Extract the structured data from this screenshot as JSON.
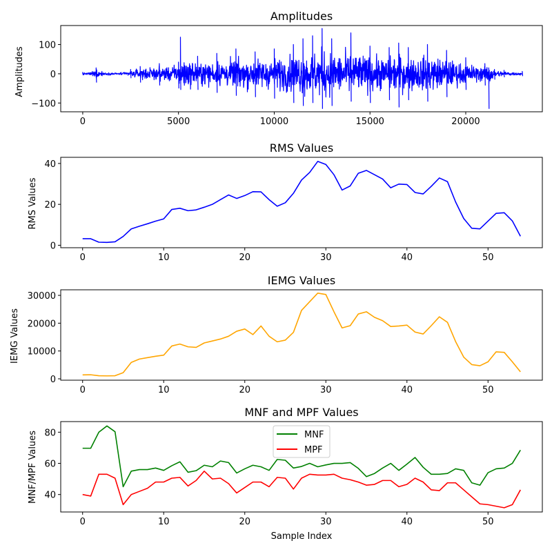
{
  "figure": {
    "shared_xlabel": "Sample Index"
  },
  "chart_data": [
    {
      "type": "line",
      "title": "Amplitudes",
      "xlabel": "",
      "ylabel": "Amplitudes",
      "xlim": [
        -1150,
        24000
      ],
      "ylim": [
        -130,
        165
      ],
      "xticks": [
        0,
        5000,
        10000,
        15000,
        20000
      ],
      "yticks": [
        -100,
        0,
        100
      ],
      "grid": false,
      "series": [
        {
          "name": "Amplitudes",
          "color": "#0000ff",
          "sample_count": 22950,
          "envelope_x": [
            0,
            500,
            700,
            1000,
            2000,
            2500,
            3000,
            4000,
            5000,
            5100,
            6000,
            7000,
            8000,
            9000,
            10000,
            11000,
            11500,
            12000,
            12500,
            13000,
            14000,
            15000,
            16000,
            16500,
            17000,
            18000,
            19000,
            20000,
            21000,
            21200,
            21500,
            22000,
            22950
          ],
          "envelope_upper": [
            5,
            8,
            20,
            8,
            5,
            15,
            25,
            35,
            40,
            125,
            60,
            70,
            85,
            75,
            85,
            100,
            120,
            130,
            155,
            120,
            140,
            95,
            90,
            105,
            90,
            100,
            80,
            55,
            35,
            20,
            15,
            12,
            8
          ],
          "envelope_lower": [
            -5,
            -8,
            -30,
            -8,
            -5,
            -15,
            -30,
            -40,
            -50,
            -55,
            -55,
            -65,
            -75,
            -80,
            -85,
            -100,
            -110,
            -100,
            -120,
            -110,
            -95,
            -100,
            -90,
            -115,
            -90,
            -95,
            -80,
            -55,
            -40,
            -120,
            -20,
            -12,
            -8
          ]
        }
      ]
    },
    {
      "type": "line",
      "title": "RMS Values",
      "xlabel": "",
      "ylabel": "RMS Values",
      "xlim": [
        -2.7,
        56.7
      ],
      "ylim": [
        -1.2,
        43
      ],
      "xticks": [
        0,
        10,
        20,
        30,
        40,
        50
      ],
      "yticks": [
        0,
        20,
        40
      ],
      "grid": false,
      "series": [
        {
          "name": "RMS",
          "color": "#0000ff",
          "values": [
            3.2,
            3.2,
            1.5,
            1.4,
            1.7,
            4.3,
            8.0,
            9.3,
            10.5,
            11.8,
            12.9,
            17.5,
            18.1,
            16.9,
            17.3,
            18.6,
            20.0,
            22.3,
            24.6,
            22.9,
            24.3,
            26.2,
            26.1,
            22.3,
            19.1,
            20.8,
            25.4,
            31.9,
            35.6,
            41.0,
            39.5,
            34.5,
            27.0,
            29.0,
            35.2,
            36.6,
            34.5,
            32.4,
            28.1,
            29.9,
            29.7,
            25.8,
            25.1,
            28.8,
            32.9,
            31.1,
            21.2,
            13.1,
            8.3,
            8.0,
            11.8,
            15.6,
            15.9,
            11.9,
            4.4
          ]
        }
      ]
    },
    {
      "type": "line",
      "title": "IEMG Values",
      "xlabel": "",
      "ylabel": "IEMG Values",
      "xlim": [
        -2.7,
        56.7
      ],
      "ylim": [
        -500,
        32000
      ],
      "xticks": [
        0,
        10,
        20,
        30,
        40,
        50
      ],
      "yticks": [
        0,
        10000,
        20000,
        30000
      ],
      "grid": false,
      "series": [
        {
          "name": "IEMG",
          "color": "#ffa500",
          "values": [
            1400,
            1450,
            1100,
            1050,
            1100,
            2200,
            5900,
            7100,
            7600,
            8100,
            8500,
            11800,
            12500,
            11500,
            11300,
            12900,
            13600,
            14300,
            15300,
            17100,
            17900,
            15900,
            19000,
            15300,
            13300,
            13900,
            16700,
            24600,
            27700,
            30800,
            30300,
            24100,
            18300,
            19100,
            23300,
            24100,
            22100,
            20900,
            18800,
            19000,
            19300,
            16800,
            16100,
            19100,
            22300,
            20300,
            13400,
            7800,
            5100,
            4700,
            6100,
            9700,
            9500,
            6100,
            2500
          ]
        }
      ]
    },
    {
      "type": "line",
      "title": "MNF and MPF Values",
      "xlabel": "Sample Index",
      "ylabel": "MNF/MPF Values",
      "xlim": [
        -2.7,
        56.7
      ],
      "ylim": [
        28.8,
        86.8
      ],
      "xticks": [
        0,
        10,
        20,
        30,
        40,
        50
      ],
      "yticks": [
        40,
        60,
        80
      ],
      "grid": false,
      "legend": "upper center",
      "series": [
        {
          "name": "MNF",
          "color": "#008000",
          "values": [
            69.7,
            69.7,
            80.0,
            84.0,
            80.3,
            45.0,
            55.0,
            56.0,
            56.0,
            57.0,
            55.5,
            58.5,
            61.0,
            54.3,
            55.3,
            58.8,
            57.8,
            61.5,
            60.5,
            53.8,
            56.5,
            58.8,
            57.8,
            55.5,
            62.5,
            62.0,
            57.0,
            58.0,
            60.0,
            57.8,
            59.0,
            60.0,
            60.0,
            60.5,
            56.8,
            51.5,
            53.5,
            57.0,
            60.0,
            55.5,
            59.5,
            63.8,
            57.5,
            53.0,
            53.0,
            53.5,
            56.5,
            55.5,
            47.5,
            46.0,
            54.0,
            56.5,
            57.0,
            60.0,
            68.5
          ]
        },
        {
          "name": "MPF",
          "color": "#ff0000",
          "values": [
            40.0,
            39.0,
            53.0,
            53.0,
            50.5,
            33.5,
            40.0,
            42.0,
            44.0,
            48.0,
            48.0,
            50.5,
            51.0,
            45.5,
            49.0,
            55.0,
            50.0,
            50.5,
            47.0,
            41.0,
            44.5,
            48.0,
            48.0,
            45.0,
            51.0,
            50.5,
            43.5,
            50.5,
            53.0,
            52.5,
            52.5,
            53.0,
            50.5,
            49.5,
            48.0,
            46.0,
            46.5,
            49.0,
            49.0,
            45.0,
            46.5,
            50.5,
            48.0,
            43.0,
            42.5,
            47.5,
            47.5,
            43.0,
            38.5,
            34.0,
            33.5,
            32.5,
            31.5,
            33.5,
            43.0
          ]
        }
      ]
    }
  ]
}
